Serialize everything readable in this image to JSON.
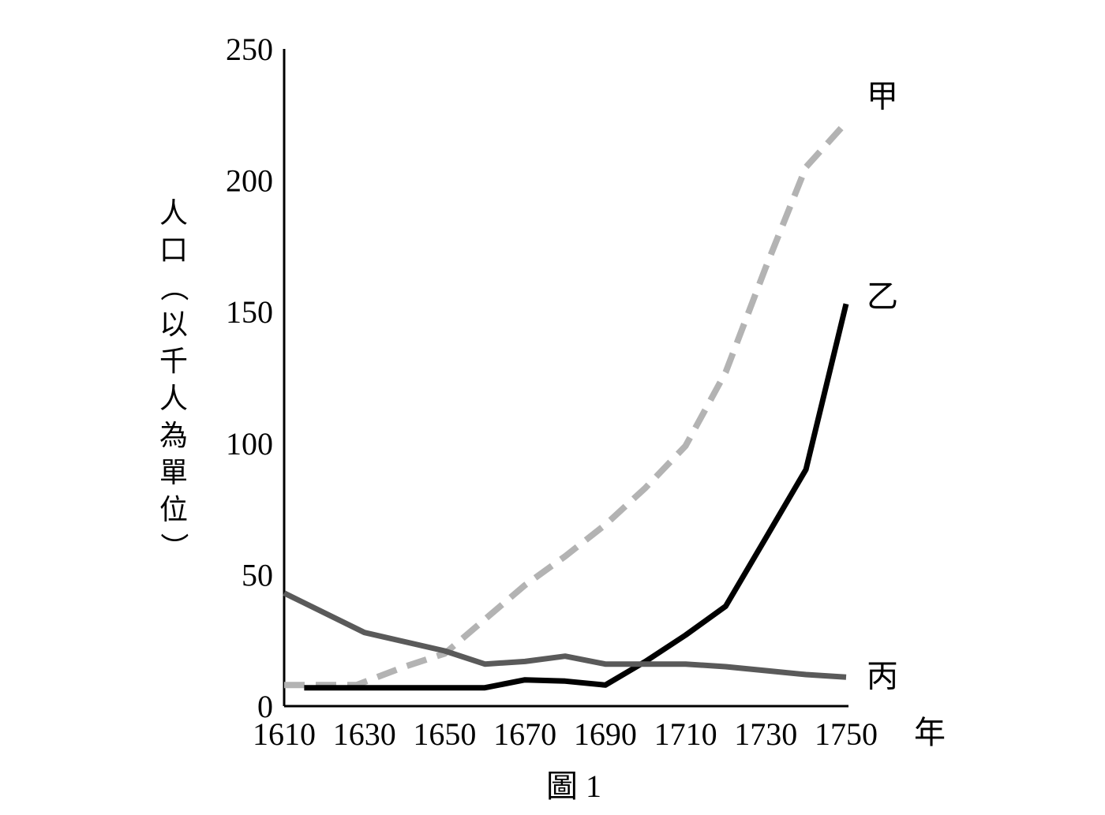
{
  "chart_data": {
    "type": "line",
    "xlabel": "年",
    "ylabel": "人口（以千人為單位）",
    "caption": "圖 1",
    "x_ticks": [
      "1610",
      "1630",
      "1650",
      "1670",
      "1690",
      "1710",
      "1730",
      "1750"
    ],
    "y_ticks": [
      "0",
      "50",
      "100",
      "150",
      "200",
      "250"
    ],
    "xlim": [
      1610,
      1750
    ],
    "ylim": [
      0,
      250
    ],
    "grid": false,
    "series": [
      {
        "name": "甲",
        "color": "#b3b3b3",
        "style": "dashed",
        "points": [
          [
            1610,
            8
          ],
          [
            1628,
            8
          ],
          [
            1640,
            15
          ],
          [
            1650,
            20
          ],
          [
            1660,
            33
          ],
          [
            1670,
            46
          ],
          [
            1680,
            57
          ],
          [
            1690,
            69
          ],
          [
            1700,
            83
          ],
          [
            1710,
            99
          ],
          [
            1720,
            127
          ],
          [
            1730,
            167
          ],
          [
            1740,
            205
          ],
          [
            1750,
            222
          ]
        ]
      },
      {
        "name": "乙",
        "color": "#000000",
        "style": "solid",
        "points": [
          [
            1615,
            7
          ],
          [
            1630,
            7
          ],
          [
            1650,
            7
          ],
          [
            1660,
            7
          ],
          [
            1670,
            10
          ],
          [
            1680,
            9.5
          ],
          [
            1690,
            8
          ],
          [
            1700,
            17
          ],
          [
            1710,
            27
          ],
          [
            1720,
            38
          ],
          [
            1730,
            64
          ],
          [
            1740,
            90
          ],
          [
            1750,
            153
          ]
        ]
      },
      {
        "name": "丙",
        "color": "#5a5a5a",
        "style": "solid",
        "points": [
          [
            1610,
            43
          ],
          [
            1630,
            28
          ],
          [
            1650,
            21
          ],
          [
            1660,
            16
          ],
          [
            1670,
            17
          ],
          [
            1680,
            19
          ],
          [
            1690,
            16
          ],
          [
            1700,
            16
          ],
          [
            1710,
            16
          ],
          [
            1720,
            15
          ],
          [
            1730,
            13.5
          ],
          [
            1740,
            12
          ],
          [
            1750,
            11
          ]
        ]
      }
    ]
  }
}
